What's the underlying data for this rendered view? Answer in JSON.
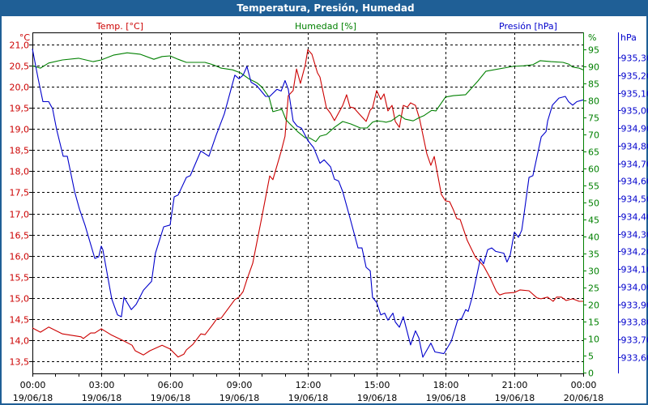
{
  "window": {
    "title": "Temperatura, Presión, Humedad"
  },
  "colors": {
    "temp": "#cc0000",
    "humidity": "#008000",
    "pressure": "#0000cc",
    "titlebar": "#1f5f96"
  },
  "chart_data": {
    "type": "line",
    "title": "Temperatura, Presión, Humedad",
    "x_ticks": [
      {
        "h": 0,
        "time": "00:00",
        "date": "19/06/18"
      },
      {
        "h": 3,
        "time": "03:00",
        "date": "19/06/18"
      },
      {
        "h": 6,
        "time": "06:00",
        "date": "19/06/18"
      },
      {
        "h": 9,
        "time": "09:00",
        "date": "19/06/18"
      },
      {
        "h": 12,
        "time": "12:00",
        "date": "19/06/18"
      },
      {
        "h": 15,
        "time": "15:00",
        "date": "19/06/18"
      },
      {
        "h": 18,
        "time": "18:00",
        "date": "19/06/18"
      },
      {
        "h": 21,
        "time": "21:00",
        "date": "19/06/18"
      },
      {
        "h": 24,
        "time": "00:00",
        "date": "20/06/18"
      }
    ],
    "xlim_hours": [
      0,
      24
    ],
    "grid": true,
    "axes": {
      "temp": {
        "title": "Temp. [°C]",
        "unit": "°C",
        "ylim": [
          13.25,
          21.3
        ],
        "ticks": [
          13.5,
          14.0,
          14.5,
          15.0,
          15.5,
          16.0,
          16.5,
          17.0,
          17.5,
          18.0,
          18.5,
          19.0,
          19.5,
          20.0,
          20.5,
          21.0
        ],
        "tick_labels": [
          "13,5",
          "14,0",
          "14,5",
          "15,0",
          "15,5",
          "16,0",
          "16,5",
          "17,0",
          "17,5",
          "18,0",
          "18,5",
          "19,0",
          "19,5",
          "20,0",
          "20,5",
          "21,0"
        ]
      },
      "humidity": {
        "title": "Humedad [%]",
        "unit": "%",
        "ylim": [
          0,
          100
        ],
        "ticks": [
          0,
          5,
          10,
          15,
          20,
          25,
          30,
          35,
          40,
          45,
          50,
          55,
          60,
          65,
          70,
          75,
          80,
          85,
          90,
          95
        ],
        "tick_labels": [
          "0",
          "5",
          "10",
          "15",
          "20",
          "25",
          "30",
          "35",
          "40",
          "45",
          "50",
          "55",
          "60",
          "65",
          "70",
          "75",
          "80",
          "85",
          "90",
          "95"
        ]
      },
      "pressure": {
        "title": "Presión [hPa]",
        "unit": "hPa",
        "ylim": [
          933.55,
          935.45
        ],
        "ticks": [
          933.6,
          933.7,
          933.8,
          933.9,
          934.0,
          934.1,
          934.2,
          934.3,
          934.4,
          934.5,
          934.6,
          934.7,
          934.8,
          934.9,
          935.0,
          935.1,
          935.2,
          935.3
        ],
        "tick_labels": [
          "933,60",
          "933,70",
          "933,80",
          "933,90",
          "934,00",
          "934,10",
          "934,20",
          "934,30",
          "934,40",
          "934,50",
          "934,60",
          "934,70",
          "934,80",
          "934,90",
          "935,00",
          "935,10",
          "935,20",
          "935,30"
        ]
      }
    },
    "series": [
      {
        "name": "Temp. [°C]",
        "axis": "temp",
        "color": "#cc0000",
        "x": [
          0,
          0.35,
          0.71,
          1.31,
          2.12,
          2.22,
          2.54,
          2.72,
          3.0,
          3.42,
          3.99,
          4.34,
          4.48,
          4.84,
          5.12,
          5.65,
          6.0,
          6.35,
          6.6,
          6.71,
          6.99,
          7.34,
          7.52,
          7.87,
          8.05,
          8.22,
          8.82,
          9.0,
          9.18,
          9.35,
          9.6,
          9.99,
          10.34,
          10.48,
          10.84,
          11.01,
          11.15,
          11.36,
          11.51,
          11.68,
          11.89,
          12.0,
          12.18,
          12.42,
          12.53,
          12.81,
          12.99,
          13.16,
          13.52,
          13.69,
          13.84,
          14.01,
          14.22,
          14.54,
          14.72,
          14.82,
          15.0,
          15.18,
          15.32,
          15.49,
          15.67,
          15.81,
          15.99,
          16.16,
          16.34,
          16.48,
          16.69,
          16.87,
          17.19,
          17.36,
          17.51,
          17.82,
          18.0,
          18.18,
          18.35,
          18.49,
          18.64,
          18.95,
          19.31,
          19.66,
          19.94,
          20.22,
          20.36,
          20.58,
          21.0,
          21.25,
          21.64,
          21.99,
          22.16,
          22.45,
          22.69,
          22.84,
          23.05,
          23.26,
          23.54,
          23.82,
          24.0
        ],
        "y": [
          14.29,
          14.19,
          14.31,
          14.15,
          14.08,
          14.04,
          14.17,
          14.17,
          14.27,
          14.13,
          13.98,
          13.88,
          13.75,
          13.65,
          13.75,
          13.88,
          13.79,
          13.6,
          13.67,
          13.77,
          13.9,
          14.15,
          14.13,
          14.38,
          14.52,
          14.52,
          14.96,
          15.02,
          15.15,
          15.44,
          15.82,
          16.9,
          17.89,
          17.8,
          18.47,
          18.83,
          19.79,
          19.91,
          20.42,
          20.08,
          20.52,
          20.88,
          20.77,
          20.33,
          20.23,
          19.5,
          19.37,
          19.2,
          19.56,
          19.81,
          19.52,
          19.5,
          19.37,
          19.18,
          19.45,
          19.5,
          19.91,
          19.7,
          19.83,
          19.43,
          19.56,
          19.18,
          19.04,
          19.56,
          19.52,
          19.62,
          19.56,
          19.24,
          18.41,
          18.14,
          18.35,
          17.45,
          17.3,
          17.28,
          17.08,
          16.88,
          16.86,
          16.36,
          15.96,
          15.76,
          15.48,
          15.15,
          15.07,
          15.11,
          15.13,
          15.19,
          15.17,
          15.0,
          14.98,
          15.02,
          14.92,
          15.02,
          15.02,
          14.94,
          14.98,
          14.92,
          14.92
        ]
      },
      {
        "name": "Humedad [%]",
        "axis": "humidity",
        "color": "#008000",
        "x": [
          0,
          0.35,
          0.71,
          1.31,
          2.01,
          2.65,
          3.0,
          3.53,
          4.13,
          4.69,
          5.29,
          5.65,
          6.0,
          6.35,
          6.71,
          7.52,
          7.87,
          8.22,
          8.72,
          9.07,
          9.42,
          9.78,
          9.99,
          10.31,
          10.48,
          10.87,
          11.05,
          11.19,
          11.58,
          11.89,
          12.07,
          12.35,
          12.53,
          12.81,
          13.16,
          13.52,
          13.87,
          14.29,
          14.58,
          14.82,
          15.0,
          15.25,
          15.42,
          15.64,
          15.99,
          16.24,
          16.59,
          16.87,
          17.05,
          17.4,
          17.58,
          18.0,
          18.35,
          18.88,
          19.41,
          19.76,
          20.93,
          21.42,
          21.81,
          22.13,
          22.59,
          23.12,
          23.36,
          23.54,
          23.82,
          24.0
        ],
        "y": [
          90.2,
          89.5,
          91.0,
          91.9,
          92.4,
          91.4,
          91.9,
          93.3,
          94.0,
          93.6,
          92.1,
          92.9,
          93.1,
          92.1,
          91.2,
          91.2,
          90.5,
          89.5,
          89.0,
          88.1,
          86.4,
          85.2,
          84.0,
          81.0,
          76.7,
          77.4,
          74.3,
          73.3,
          70.7,
          69.0,
          69.0,
          67.9,
          69.5,
          70.0,
          72.1,
          73.8,
          73.1,
          71.9,
          71.9,
          73.6,
          74.0,
          73.8,
          73.6,
          74.0,
          75.7,
          74.5,
          74.0,
          75.0,
          75.5,
          77.1,
          76.9,
          81.0,
          81.4,
          81.7,
          85.7,
          88.6,
          90.0,
          90.2,
          90.5,
          91.7,
          91.4,
          91.2,
          90.7,
          89.8,
          89.5,
          89.0
        ]
      },
      {
        "name": "Presión [hPa]",
        "axis": "pressure",
        "color": "#0000cc",
        "x": [
          0,
          0.25,
          0.46,
          0.71,
          0.88,
          1.06,
          1.34,
          1.52,
          1.84,
          2.05,
          2.29,
          2.72,
          2.89,
          3.0,
          3.07,
          3.46,
          3.71,
          3.88,
          3.99,
          4.31,
          4.52,
          4.84,
          5.19,
          5.36,
          5.72,
          6.0,
          6.18,
          6.35,
          6.71,
          6.88,
          7.34,
          7.69,
          8.01,
          8.36,
          8.82,
          9.0,
          9.18,
          9.35,
          9.53,
          9.78,
          10.16,
          10.34,
          10.66,
          10.84,
          11.01,
          11.15,
          11.36,
          11.54,
          11.72,
          12.0,
          12.25,
          12.53,
          12.71,
          12.99,
          13.16,
          13.34,
          13.52,
          13.84,
          14.19,
          14.36,
          14.54,
          14.72,
          14.82,
          15.0,
          15.18,
          15.35,
          15.49,
          15.71,
          15.81,
          15.99,
          16.16,
          16.48,
          16.69,
          16.84,
          17.01,
          17.36,
          17.54,
          17.93,
          18.25,
          18.53,
          18.71,
          18.88,
          18.99,
          19.16,
          19.52,
          19.66,
          19.84,
          20.01,
          20.19,
          20.54,
          20.68,
          20.82,
          21.0,
          21.18,
          21.32,
          21.42,
          21.64,
          21.81,
          22.17,
          22.38,
          22.45,
          22.66,
          22.94,
          23.22,
          23.36,
          23.54,
          23.72,
          24.0
        ],
        "y": [
          935.35,
          935.18,
          935.05,
          935.05,
          935.01,
          934.89,
          934.74,
          934.74,
          934.54,
          934.44,
          934.35,
          934.16,
          934.17,
          934.23,
          934.21,
          933.93,
          933.84,
          933.83,
          933.94,
          933.87,
          933.9,
          933.98,
          934.03,
          934.19,
          934.34,
          934.35,
          934.51,
          934.52,
          934.62,
          934.63,
          934.77,
          934.74,
          934.86,
          934.98,
          935.2,
          935.18,
          935.2,
          935.25,
          935.16,
          935.14,
          935.08,
          935.08,
          935.12,
          935.11,
          935.17,
          935.12,
          934.94,
          934.91,
          934.9,
          934.83,
          934.79,
          934.7,
          934.72,
          934.68,
          934.61,
          934.6,
          934.54,
          934.39,
          934.22,
          934.22,
          934.11,
          934.09,
          933.94,
          933.91,
          933.84,
          933.85,
          933.81,
          933.85,
          933.8,
          933.77,
          933.83,
          933.67,
          933.75,
          933.71,
          933.6,
          933.68,
          933.63,
          933.62,
          933.69,
          933.81,
          933.82,
          933.87,
          933.86,
          933.94,
          934.16,
          934.13,
          934.21,
          934.22,
          934.2,
          934.19,
          934.14,
          934.18,
          934.31,
          934.28,
          934.32,
          934.41,
          934.62,
          934.63,
          934.85,
          934.88,
          934.94,
          935.03,
          935.07,
          935.08,
          935.05,
          935.03,
          935.05,
          935.06
        ]
      }
    ]
  }
}
